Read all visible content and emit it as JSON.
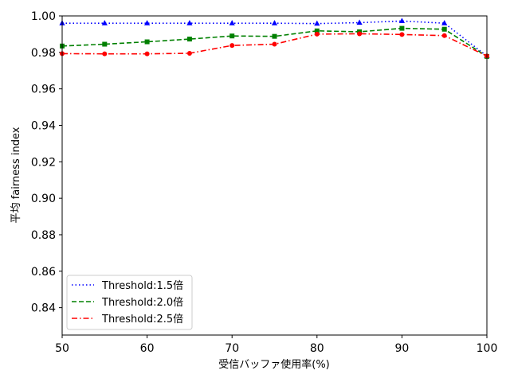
{
  "chart_data": {
    "type": "line",
    "title": "",
    "xlabel": "受信バッファ使用率(%)",
    "ylabel": "平均 fairness index",
    "xlim": [
      50,
      100
    ],
    "ylim": [
      0.825,
      1.0
    ],
    "x_ticks": [
      "50",
      "60",
      "70",
      "80",
      "90",
      "100"
    ],
    "y_ticks": [
      "0.84",
      "0.86",
      "0.88",
      "0.90",
      "0.92",
      "0.94",
      "0.96",
      "0.98",
      "1.00"
    ],
    "grid": false,
    "legend_position": "lower-left",
    "x": [
      50,
      55,
      60,
      65,
      70,
      75,
      80,
      85,
      90,
      95,
      100
    ],
    "series": [
      {
        "name": "Threshold:1.5倍",
        "color": "#0000ff",
        "line_style": "dotted",
        "marker": "triangle",
        "values": [
          0.996,
          0.996,
          0.996,
          0.996,
          0.996,
          0.996,
          0.9958,
          0.9963,
          0.9972,
          0.996,
          0.978
        ]
      },
      {
        "name": "Threshold:2.0倍",
        "color": "#008000",
        "line_style": "dashed",
        "marker": "square",
        "values": [
          0.9835,
          0.9845,
          0.9858,
          0.9873,
          0.989,
          0.9888,
          0.9918,
          0.9913,
          0.9932,
          0.9927,
          0.9778
        ]
      },
      {
        "name": "Threshold:2.5倍",
        "color": "#ff0000",
        "line_style": "dashdot",
        "marker": "circle",
        "values": [
          0.9793,
          0.9792,
          0.9792,
          0.9795,
          0.9838,
          0.9845,
          0.99,
          0.9902,
          0.9898,
          0.9892,
          0.978
        ]
      }
    ]
  }
}
